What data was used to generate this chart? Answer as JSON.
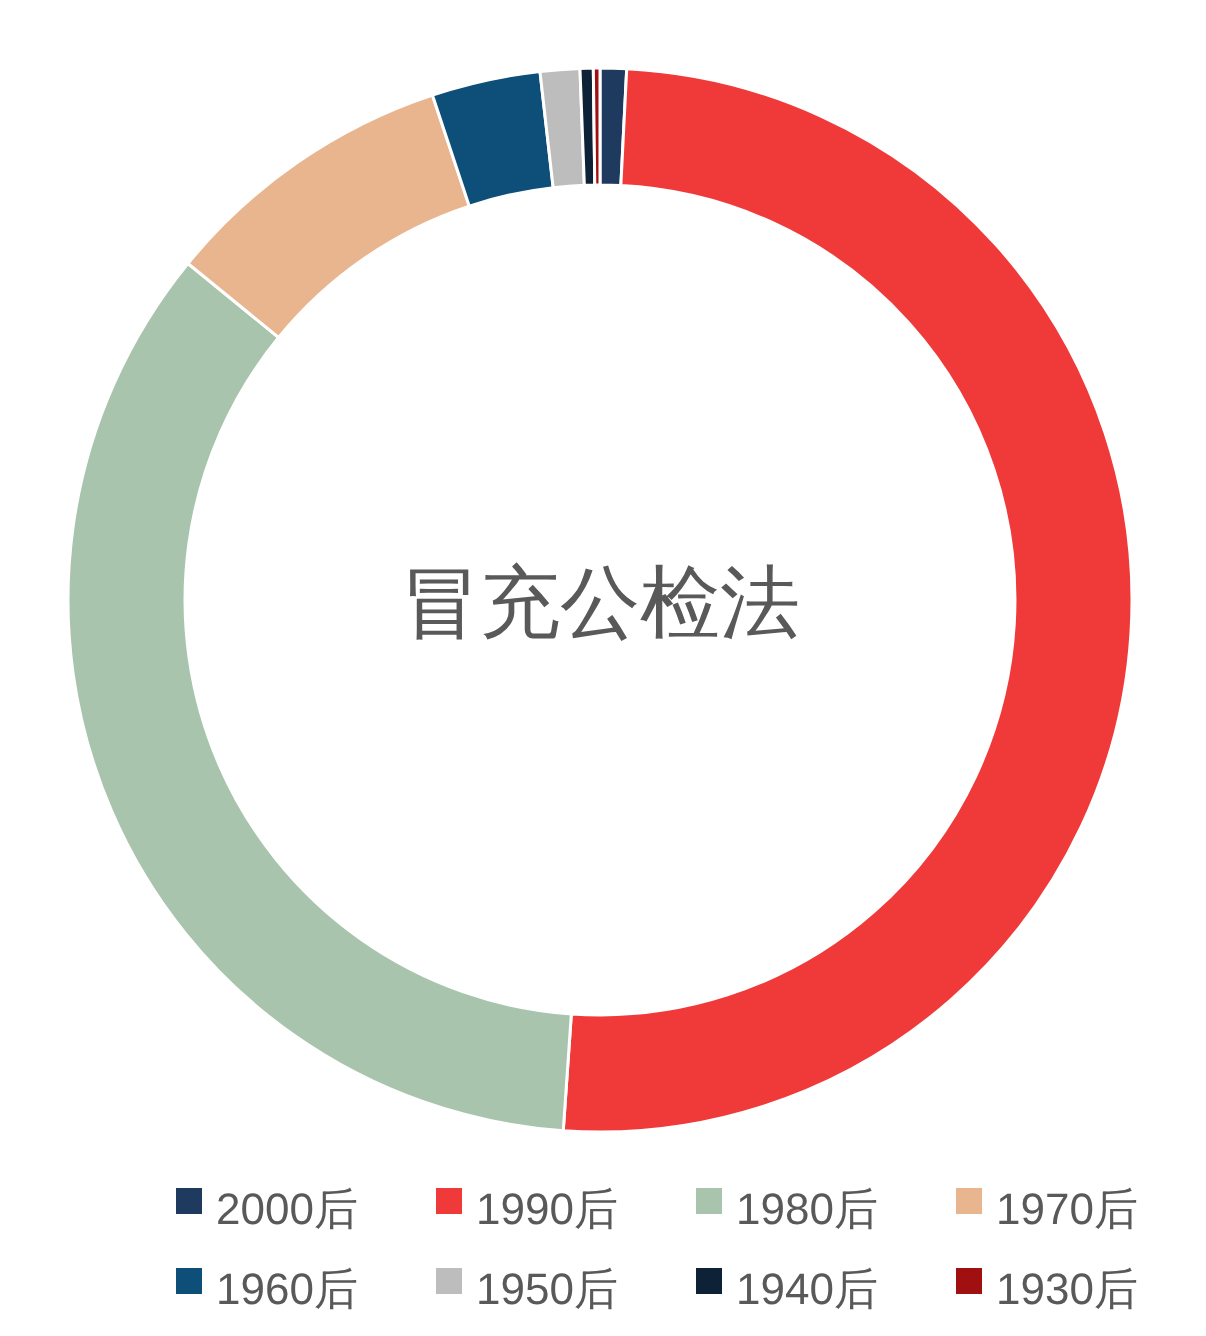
{
  "chart_data": {
    "type": "donut",
    "title": "冒充公检法",
    "categories": [
      "2000后",
      "1990后",
      "1980后",
      "1970后",
      "1960后",
      "1950后",
      "1940后",
      "1930后"
    ],
    "values": [
      0.8,
      50.3,
      34.8,
      9.0,
      3.3,
      1.2,
      0.4,
      0.2
    ],
    "colors": [
      "#1f3a5f",
      "#f03a3a",
      "#a9c4ad",
      "#e8b58f",
      "#0e4f7a",
      "#bdbdbd",
      "#0d2236",
      "#a01010"
    ],
    "legend": "bottom"
  }
}
